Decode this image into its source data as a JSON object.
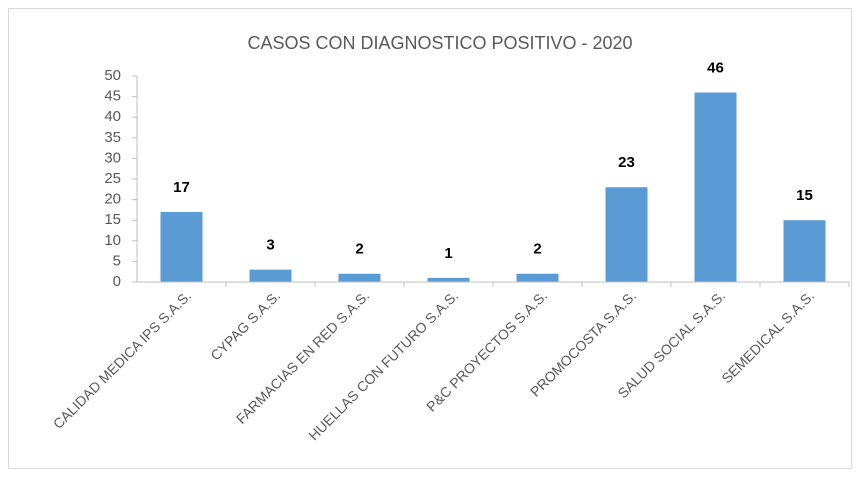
{
  "chart_data": {
    "type": "bar",
    "title": "CASOS CON DIAGNOSTICO POSITIVO - 2020",
    "categories": [
      "CALIDAD MEDICA IPS S.A.S.",
      "CYPAG S.A.S.",
      "FARMACIAS EN RED S.A.S.",
      "HUELLAS CON FUTURO S.A.S.",
      "P&C PROYECTOS S.A.S.",
      "PROMOCOSTA S.A.S.",
      "SALUD SOCIAL S.A.S.",
      "SEMEDICAL S.A.S."
    ],
    "values": [
      17,
      3,
      2,
      1,
      2,
      23,
      46,
      15
    ],
    "color": "#5b9bd5",
    "ylim": [
      0,
      50
    ],
    "yticks": [
      0,
      5,
      10,
      15,
      20,
      25,
      30,
      35,
      40,
      45,
      50
    ],
    "grid": false
  }
}
